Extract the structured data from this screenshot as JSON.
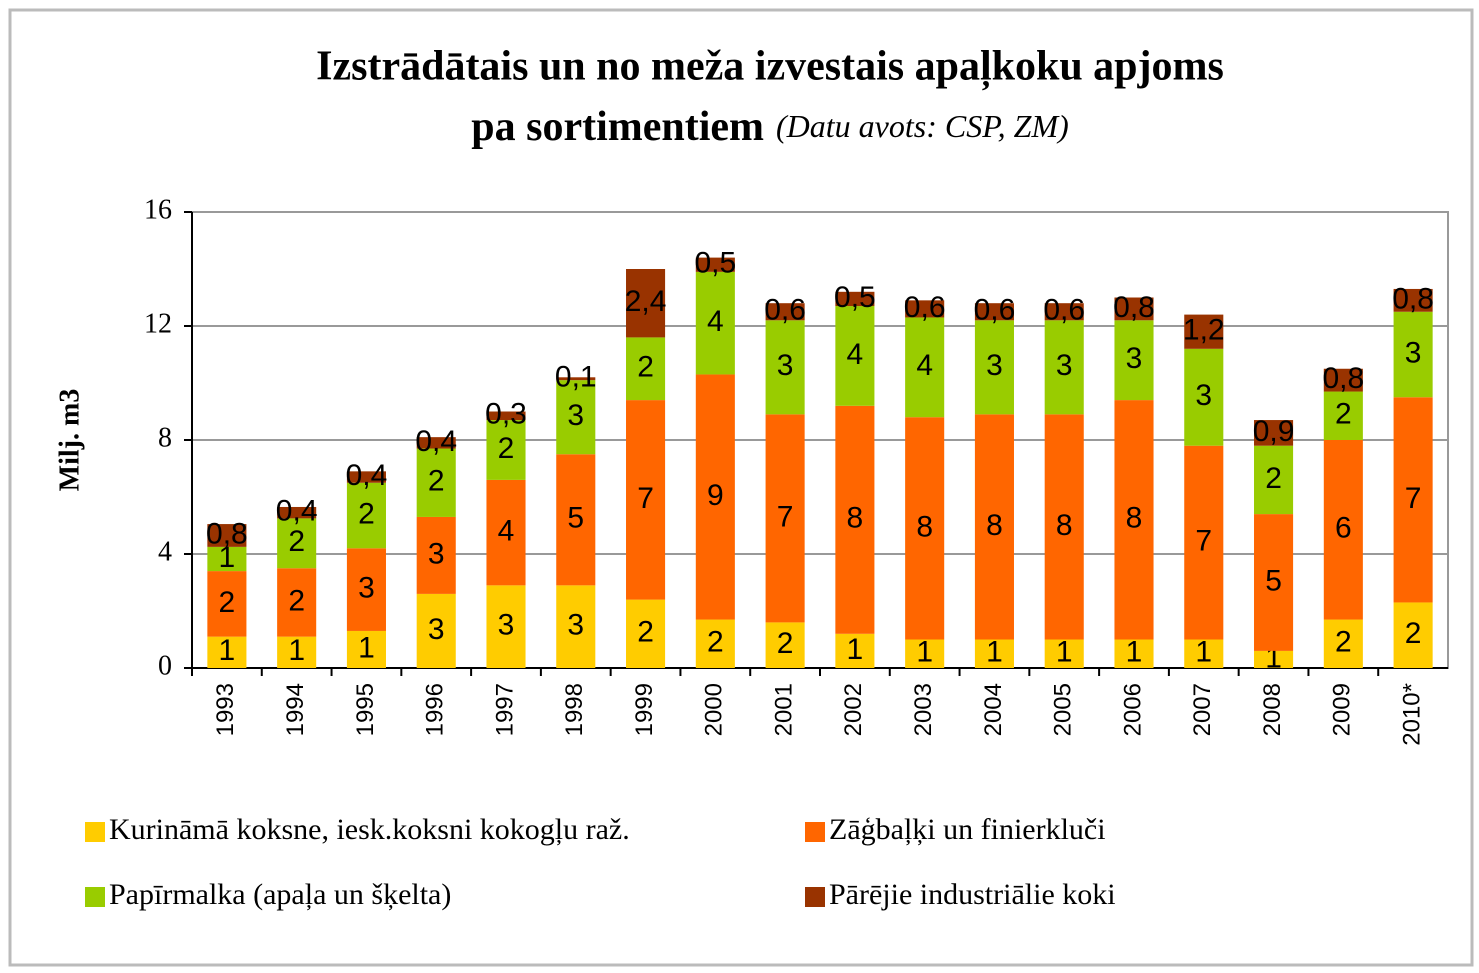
{
  "chart_data": {
    "type": "stacked_bar",
    "title": "Izstrādātais un no meža izvestais apaļkoku apjoms",
    "title_line2": "pa sortimentiem",
    "subtitle": "(Datu avots: CSP, ZM)",
    "y_label": "Milj. m3",
    "categories": [
      "1993",
      "1994",
      "1995",
      "1996",
      "1997",
      "1998",
      "1999",
      "2000",
      "2001",
      "2002",
      "2003",
      "2004",
      "2005",
      "2006",
      "2007",
      "2008",
      "2009",
      "2010*"
    ],
    "series": [
      {
        "name": "Kurināmā koksne, iesk.koksni kokogļu raž.",
        "color": "#ffcc00",
        "values": [
          1.1,
          1.1,
          1.3,
          2.6,
          2.9,
          2.9,
          2.4,
          1.7,
          1.6,
          1.2,
          1.0,
          1.0,
          1.0,
          1.0,
          1.0,
          0.6,
          1.7,
          2.3
        ],
        "value_labels": [
          "1",
          "1",
          "1",
          "3",
          "3",
          "3",
          "2",
          "2",
          "2",
          "1",
          "1",
          "1",
          "1",
          "1",
          "1",
          "1",
          "2",
          "2"
        ]
      },
      {
        "name": "Zāģbaļķi un finierkluči",
        "color": "#ff6600",
        "values": [
          2.3,
          2.4,
          2.9,
          2.7,
          3.7,
          4.6,
          7.0,
          8.6,
          7.3,
          8.0,
          7.8,
          7.9,
          7.9,
          8.4,
          6.8,
          4.8,
          6.3,
          7.2
        ],
        "value_labels": [
          "2",
          "2",
          "3",
          "3",
          "4",
          "5",
          "7",
          "9",
          "7",
          "8",
          "8",
          "8",
          "8",
          "8",
          "7",
          "5",
          "6",
          "7"
        ]
      },
      {
        "name": "Papīrmalka (apaļa un šķelta)",
        "color": "#99cc00",
        "values": [
          0.85,
          1.75,
          2.3,
          2.4,
          2.1,
          2.6,
          2.2,
          3.6,
          3.3,
          3.5,
          3.5,
          3.3,
          3.3,
          2.8,
          3.4,
          2.4,
          1.7,
          3.0
        ],
        "value_labels": [
          "1",
          "2",
          "2",
          "2",
          "2",
          "3",
          "2",
          "4",
          "3",
          "4",
          "4",
          "3",
          "3",
          "3",
          "3",
          "2",
          "2",
          "3"
        ]
      },
      {
        "name": "Pārējie industriālie koki",
        "color": "#993300",
        "values": [
          0.8,
          0.4,
          0.4,
          0.4,
          0.3,
          0.1,
          2.4,
          0.5,
          0.6,
          0.5,
          0.6,
          0.6,
          0.6,
          0.8,
          1.2,
          0.9,
          0.8,
          0.8
        ],
        "value_labels": [
          "0,8",
          "0,4",
          "0,4",
          "0,4",
          "0,3",
          "0,1",
          "2,4",
          "0,5",
          "0,6",
          "0,5",
          "0,6",
          "0,6",
          "0,6",
          "0,8",
          "1,2",
          "0,9",
          "0,8",
          "0,8"
        ]
      }
    ],
    "ylim": [
      0,
      16
    ],
    "yticks": [
      0,
      4,
      8,
      12,
      16
    ],
    "grid": true,
    "legend": "bottom"
  }
}
